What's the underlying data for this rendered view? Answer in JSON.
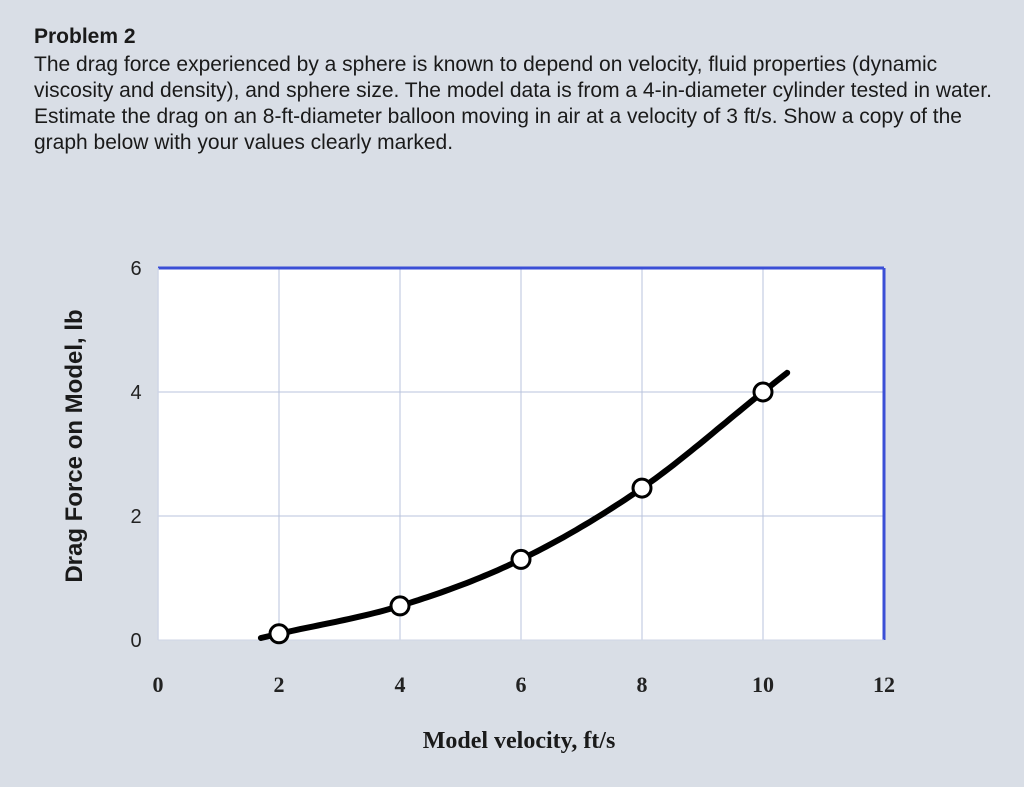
{
  "problem": {
    "title": "Problem 2",
    "text": "The drag force experienced by a sphere is known to depend on velocity, fluid properties (dynamic viscosity and density), and sphere size.  The model data is from a 4-in-diameter cylinder tested in water.  Estimate the drag on an 8-ft-diameter balloon moving in air at a velocity of 3 ft/s.  Show a copy of the graph below with your values clearly marked."
  },
  "chart_data": {
    "type": "line",
    "title": "",
    "xlabel": "Model velocity, ft/s",
    "ylabel": "Drag Force on Model, lb",
    "xlim": [
      0,
      12
    ],
    "ylim": [
      0,
      6
    ],
    "x_ticks": [
      "0",
      "2",
      "4",
      "6",
      "8",
      "10",
      "12"
    ],
    "y_ticks": [
      "0",
      "2",
      "4",
      "6"
    ],
    "grid": true,
    "series": [
      {
        "markers": "open-circle",
        "points": [
          {
            "x": 2.0,
            "y": 0.1
          },
          {
            "x": 4.0,
            "y": 0.55
          },
          {
            "x": 6.0,
            "y": 1.3
          },
          {
            "x": 8.0,
            "y": 2.45
          },
          {
            "x": 10.0,
            "y": 4.0
          }
        ],
        "curve_extends": {
          "x_start": 1.7,
          "x_end": 10.4
        }
      }
    ],
    "colors": {
      "frame": "#3b4fd6",
      "grid": "#b9c3dc",
      "curve": "#000000",
      "background": "#ffffff"
    }
  }
}
